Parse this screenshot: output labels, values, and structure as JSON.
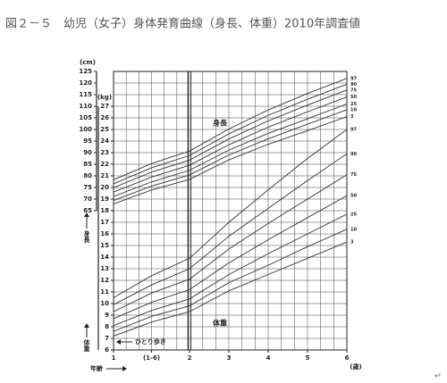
{
  "chart_data": {
    "type": "line",
    "title": "図２－５　幼児（女子）身体発育曲線（身長、体重）2010年調査値",
    "x": [
      1,
      1.5,
      2,
      3,
      4,
      5,
      6
    ],
    "xticks": [
      1,
      {
        "value": 1.5,
        "label": "(1-6)"
      },
      2,
      3,
      4,
      5,
      6
    ],
    "xlim": [
      1,
      6
    ],
    "xlabel": "年齢",
    "xunit": "(歳)",
    "ylabel": "身長",
    "yunit": "(cm)",
    "ylim": [
      5,
      125
    ],
    "yticks": [
      125,
      120,
      115,
      110,
      105,
      100,
      95,
      90,
      85,
      80,
      75,
      70,
      65
    ],
    "y2label": "体重",
    "y2unit": "(kg)",
    "y2lim": [
      6,
      30
    ],
    "y2ticks": [
      27,
      26,
      25,
      24,
      23,
      22,
      21,
      20,
      19,
      18,
      17,
      16,
      15,
      14,
      13,
      12,
      11,
      10,
      9,
      8,
      7,
      6
    ],
    "grid": true,
    "annotations": [
      "身長",
      "体重",
      "ひとり歩き"
    ],
    "return_mark": "↵",
    "series": [
      {
        "name": "97",
        "color": "#333333",
        "values": [
          78.3,
          85.3,
          90.7,
          100.2,
          108.4,
          115.5,
          122.0
        ]
      },
      {
        "name": "90",
        "color": "#333333",
        "values": [
          76.6,
          83.5,
          88.8,
          98.1,
          106.1,
          113.0,
          119.5
        ]
      },
      {
        "name": "75",
        "color": "#333333",
        "values": [
          74.9,
          81.6,
          86.8,
          95.9,
          103.7,
          110.5,
          117.0
        ]
      },
      {
        "name": "50",
        "color": "#333333",
        "values": [
          73.0,
          79.5,
          84.6,
          93.4,
          101.0,
          107.6,
          114.0
        ]
      },
      {
        "name": "25",
        "color": "#333333",
        "values": [
          71.1,
          77.4,
          82.4,
          91.1,
          98.3,
          104.6,
          111.0
        ]
      },
      {
        "name": "10",
        "color": "#333333",
        "values": [
          69.4,
          75.6,
          80.4,
          89.0,
          96.0,
          102.3,
          108.5
        ]
      },
      {
        "name": "3",
        "color": "#333333",
        "values": [
          67.9,
          73.9,
          78.5,
          86.9,
          93.6,
          99.5,
          105.5
        ]
      },
      {
        "name": "97",
        "color": "#333333",
        "axis": "y2",
        "values": [
          10.5,
          12.4,
          13.9,
          17.0,
          19.8,
          22.5,
          25.0
        ]
      },
      {
        "name": "90",
        "color": "#333333",
        "axis": "y2",
        "values": [
          9.9,
          11.6,
          13.0,
          15.8,
          18.2,
          20.6,
          22.9
        ]
      },
      {
        "name": "75",
        "color": "#333333",
        "axis": "y2",
        "values": [
          9.3,
          10.9,
          12.1,
          14.7,
          16.9,
          19.0,
          21.1
        ]
      },
      {
        "name": "50",
        "color": "#333333",
        "axis": "y2",
        "values": [
          8.7,
          10.1,
          11.2,
          13.5,
          15.5,
          17.4,
          19.3
        ]
      },
      {
        "name": "25",
        "color": "#333333",
        "axis": "y2",
        "values": [
          8.1,
          9.4,
          10.4,
          12.5,
          14.3,
          16.0,
          17.7
        ]
      },
      {
        "name": "10",
        "color": "#333333",
        "axis": "y2",
        "values": [
          7.6,
          8.9,
          9.8,
          11.8,
          13.3,
          14.9,
          16.4
        ]
      },
      {
        "name": "3",
        "color": "#333333",
        "axis": "y2",
        "values": [
          7.2,
          8.4,
          9.3,
          11.1,
          12.5,
          13.9,
          15.3
        ]
      }
    ]
  }
}
